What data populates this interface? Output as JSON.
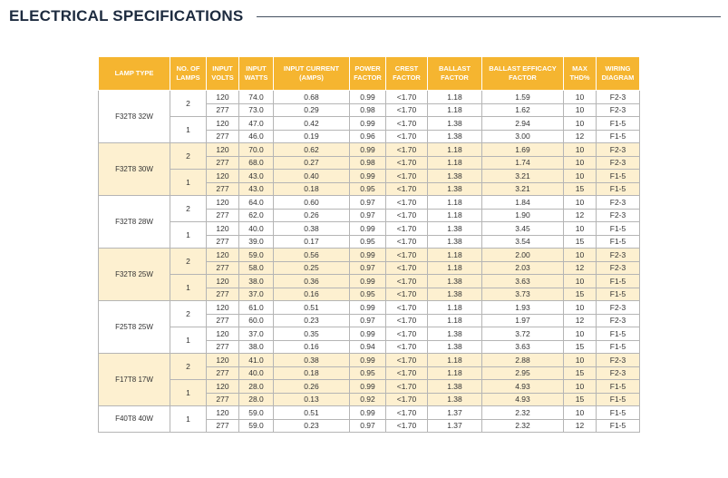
{
  "header": {
    "title": "ELECTRICAL SPECIFICATIONS"
  },
  "table": {
    "columns": [
      "LAMP TYPE",
      "NO. OF LAMPS",
      "INPUT VOLTS",
      "INPUT WATTS",
      "INPUT CURRENT (AMPS)",
      "POWER FACTOR",
      "CREST FACTOR",
      "BALLAST FACTOR",
      "BALLAST EFFICACY FACTOR",
      "MAX THD%",
      "WIRING DIAGRAM"
    ],
    "groups": [
      {
        "lamp_type": "F32T8 32W",
        "subgroups": [
          {
            "lamps": "2",
            "rows": [
              [
                "120",
                "74.0",
                "0.68",
                "0.99",
                "<1.70",
                "1.18",
                "1.59",
                "10",
                "F2-3"
              ],
              [
                "277",
                "73.0",
                "0.29",
                "0.98",
                "<1.70",
                "1.18",
                "1.62",
                "10",
                "F2-3"
              ]
            ]
          },
          {
            "lamps": "1",
            "rows": [
              [
                "120",
                "47.0",
                "0.42",
                "0.99",
                "<1.70",
                "1.38",
                "2.94",
                "10",
                "F1-5"
              ],
              [
                "277",
                "46.0",
                "0.19",
                "0.96",
                "<1.70",
                "1.38",
                "3.00",
                "12",
                "F1-5"
              ]
            ]
          }
        ]
      },
      {
        "lamp_type": "F32T8 30W",
        "subgroups": [
          {
            "lamps": "2",
            "rows": [
              [
                "120",
                "70.0",
                "0.62",
                "0.99",
                "<1.70",
                "1.18",
                "1.69",
                "10",
                "F2-3"
              ],
              [
                "277",
                "68.0",
                "0.27",
                "0.98",
                "<1.70",
                "1.18",
                "1.74",
                "10",
                "F2-3"
              ]
            ]
          },
          {
            "lamps": "1",
            "rows": [
              [
                "120",
                "43.0",
                "0.40",
                "0.99",
                "<1.70",
                "1.38",
                "3.21",
                "10",
                "F1-5"
              ],
              [
                "277",
                "43.0",
                "0.18",
                "0.95",
                "<1.70",
                "1.38",
                "3.21",
                "15",
                "F1-5"
              ]
            ]
          }
        ]
      },
      {
        "lamp_type": "F32T8 28W",
        "subgroups": [
          {
            "lamps": "2",
            "rows": [
              [
                "120",
                "64.0",
                "0.60",
                "0.97",
                "<1.70",
                "1.18",
                "1.84",
                "10",
                "F2-3"
              ],
              [
                "277",
                "62.0",
                "0.26",
                "0.97",
                "<1.70",
                "1.18",
                "1.90",
                "12",
                "F2-3"
              ]
            ]
          },
          {
            "lamps": "1",
            "rows": [
              [
                "120",
                "40.0",
                "0.38",
                "0.99",
                "<1.70",
                "1.38",
                "3.45",
                "10",
                "F1-5"
              ],
              [
                "277",
                "39.0",
                "0.17",
                "0.95",
                "<1.70",
                "1.38",
                "3.54",
                "15",
                "F1-5"
              ]
            ]
          }
        ]
      },
      {
        "lamp_type": "F32T8 25W",
        "subgroups": [
          {
            "lamps": "2",
            "rows": [
              [
                "120",
                "59.0",
                "0.56",
                "0.99",
                "<1.70",
                "1.18",
                "2.00",
                "10",
                "F2-3"
              ],
              [
                "277",
                "58.0",
                "0.25",
                "0.97",
                "<1.70",
                "1.18",
                "2.03",
                "12",
                "F2-3"
              ]
            ]
          },
          {
            "lamps": "1",
            "rows": [
              [
                "120",
                "38.0",
                "0.36",
                "0.99",
                "<1.70",
                "1.38",
                "3.63",
                "10",
                "F1-5"
              ],
              [
                "277",
                "37.0",
                "0.16",
                "0.95",
                "<1.70",
                "1.38",
                "3.73",
                "15",
                "F1-5"
              ]
            ]
          }
        ]
      },
      {
        "lamp_type": "F25T8 25W",
        "subgroups": [
          {
            "lamps": "2",
            "rows": [
              [
                "120",
                "61.0",
                "0.51",
                "0.99",
                "<1.70",
                "1.18",
                "1.93",
                "10",
                "F2-3"
              ],
              [
                "277",
                "60.0",
                "0.23",
                "0.97",
                "<1.70",
                "1.18",
                "1.97",
                "12",
                "F2-3"
              ]
            ]
          },
          {
            "lamps": "1",
            "rows": [
              [
                "120",
                "37.0",
                "0.35",
                "0.99",
                "<1.70",
                "1.38",
                "3.72",
                "10",
                "F1-5"
              ],
              [
                "277",
                "38.0",
                "0.16",
                "0.94",
                "<1.70",
                "1.38",
                "3.63",
                "15",
                "F1-5"
              ]
            ]
          }
        ]
      },
      {
        "lamp_type": "F17T8 17W",
        "subgroups": [
          {
            "lamps": "2",
            "rows": [
              [
                "120",
                "41.0",
                "0.38",
                "0.99",
                "<1.70",
                "1.18",
                "2.88",
                "10",
                "F2-3"
              ],
              [
                "277",
                "40.0",
                "0.18",
                "0.95",
                "<1.70",
                "1.18",
                "2.95",
                "15",
                "F2-3"
              ]
            ]
          },
          {
            "lamps": "1",
            "rows": [
              [
                "120",
                "28.0",
                "0.26",
                "0.99",
                "<1.70",
                "1.38",
                "4.93",
                "10",
                "F1-5"
              ],
              [
                "277",
                "28.0",
                "0.13",
                "0.92",
                "<1.70",
                "1.38",
                "4.93",
                "15",
                "F1-5"
              ]
            ]
          }
        ]
      },
      {
        "lamp_type": "F40T8 40W",
        "subgroups": [
          {
            "lamps": "1",
            "rows": [
              [
                "120",
                "59.0",
                "0.51",
                "0.99",
                "<1.70",
                "1.37",
                "2.32",
                "10",
                "F1-5"
              ],
              [
                "277",
                "59.0",
                "0.23",
                "0.97",
                "<1.70",
                "1.37",
                "2.32",
                "12",
                "F1-5"
              ]
            ]
          }
        ]
      }
    ]
  }
}
